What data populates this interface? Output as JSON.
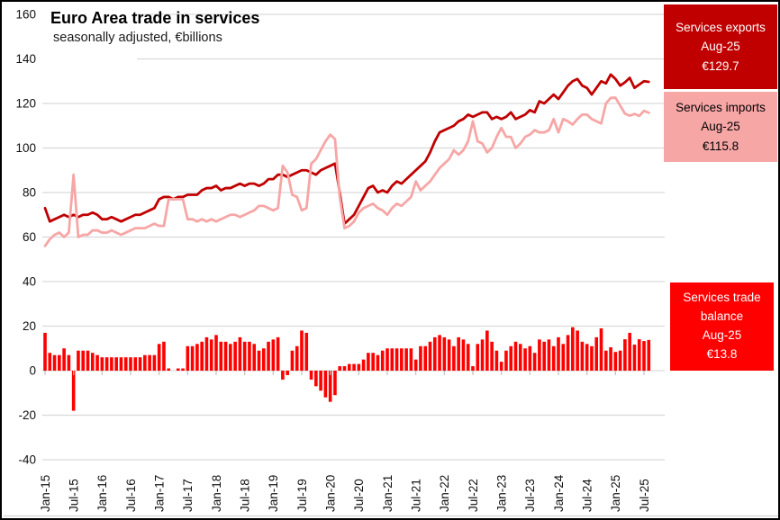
{
  "title": "Euro Area trade in services",
  "subtitle": "seasonally adjusted, €billions",
  "callouts": {
    "exports": {
      "lines": [
        "Services exports",
        "Aug-25",
        "€129.7"
      ],
      "bg": "#C00000",
      "text_color": "#FFFFFF"
    },
    "imports": {
      "lines": [
        "Services imports",
        "Aug-25",
        "€115.8"
      ],
      "bg": "#F7A6A6",
      "text_color": "#000000"
    },
    "balance": {
      "lines": [
        "Services trade balance",
        "Aug-25",
        "€13.8"
      ],
      "bg": "#FF0000",
      "text_color": "#FFFFFF"
    }
  },
  "chart_data": {
    "type": "combo",
    "title": "Euro Area trade in services",
    "subtitle": "seasonally adjusted, €billions",
    "frequency": "monthly",
    "period_start": "Jan-15",
    "period_end": "Aug-25",
    "x_ticks": [
      "Jan-15",
      "Jul-15",
      "Jan-16",
      "Jul-16",
      "Jan-17",
      "Jul-17",
      "Jan-18",
      "Jul-18",
      "Jan-19",
      "Jul-19",
      "Jan-20",
      "Jul-20",
      "Jan-21",
      "Jul-21",
      "Jan-22",
      "Jul-22",
      "Jan-23",
      "Jul-23",
      "Jan-24",
      "Jul-24",
      "Jan-25",
      "Jul-25"
    ],
    "y_ticks": [
      160,
      140,
      120,
      100,
      80,
      60,
      40,
      20,
      0,
      -20,
      -40
    ],
    "ylim": [
      -40,
      160
    ],
    "grid": true,
    "grid_color": "#D9D9D9",
    "tick_color": "#BFBFBF",
    "series": [
      {
        "name": "Services exports",
        "type": "line",
        "color": "#C00000",
        "values": [
          73,
          67,
          68,
          69,
          70,
          69,
          70,
          69,
          70,
          70,
          71,
          70,
          68,
          68,
          69,
          68,
          67,
          68,
          69,
          70,
          70,
          71,
          72,
          73,
          77,
          78,
          78,
          77,
          78,
          78,
          79,
          79,
          79,
          81,
          82,
          82,
          83,
          81,
          82,
          82,
          83,
          84,
          83,
          84,
          84,
          83,
          84,
          86,
          86,
          88,
          88,
          87,
          88,
          89,
          90,
          90,
          89,
          88,
          90,
          91,
          92,
          93,
          80,
          66,
          68,
          70,
          74,
          78,
          82,
          83,
          80,
          81,
          80,
          83,
          85,
          84,
          86,
          88,
          90,
          92,
          94,
          98,
          103,
          107,
          108,
          109,
          110,
          112,
          113,
          115,
          114,
          115,
          116,
          116,
          113,
          114,
          113,
          114,
          116,
          113,
          114,
          115,
          117,
          116,
          121,
          120,
          122,
          124,
          122,
          125,
          128,
          130,
          131,
          128,
          127,
          124,
          127,
          130,
          129,
          133,
          131,
          128,
          129.5,
          131.5,
          127,
          128.5,
          130,
          129.7
        ]
      },
      {
        "name": "Services imports",
        "type": "line",
        "color": "#F7A6A6",
        "values": [
          56,
          59,
          61,
          62,
          60,
          62,
          88,
          60,
          61,
          61,
          63,
          63,
          62,
          62,
          63,
          62,
          61,
          62,
          63,
          64,
          64,
          64,
          65,
          66,
          65,
          65,
          77,
          77,
          77,
          77,
          68,
          68,
          67,
          68,
          67,
          68,
          67,
          68,
          69,
          70,
          70,
          69,
          70,
          71,
          72,
          74,
          74,
          73,
          72,
          73,
          92,
          89,
          79,
          78,
          72,
          73,
          93,
          95,
          99,
          103,
          106,
          104,
          78,
          64,
          65,
          67,
          71,
          73,
          74,
          75,
          73,
          72,
          70,
          73,
          75,
          74,
          76,
          78,
          85,
          81,
          83,
          85,
          88,
          91,
          93,
          95,
          99,
          97,
          99,
          103,
          112,
          103,
          102,
          98,
          100,
          105,
          109,
          105,
          105,
          100,
          102,
          105,
          106,
          108,
          107,
          107,
          108,
          113,
          107,
          113,
          112,
          110.5,
          113,
          115,
          115,
          113,
          112,
          111,
          120,
          122.5,
          122.6,
          119,
          115.4,
          114.5,
          115.3,
          114.4,
          116.7,
          115.8
        ]
      },
      {
        "name": "Services trade balance",
        "type": "bar",
        "color": "#FF0000",
        "values": [
          17,
          8,
          7,
          7,
          10,
          7,
          -18,
          9,
          9,
          9,
          8,
          7,
          6,
          6,
          6,
          6,
          6,
          6,
          6,
          6,
          6,
          7,
          7,
          7,
          12,
          13,
          1,
          0,
          1,
          1,
          11,
          11,
          12,
          13,
          15,
          14,
          16,
          13,
          13,
          12,
          13,
          15,
          13,
          13,
          12,
          9,
          10,
          13,
          14,
          15,
          -4,
          -2,
          9,
          11,
          18,
          17,
          -4,
          -7,
          -9,
          -12,
          -14,
          -11,
          2,
          2,
          3,
          3,
          3,
          5,
          8,
          8,
          7,
          9,
          10,
          10,
          10,
          10,
          10,
          10,
          5,
          11,
          11,
          13,
          15,
          16,
          15,
          14,
          11,
          15,
          14,
          12,
          2,
          12,
          14,
          18,
          13,
          9,
          4,
          9,
          11,
          13,
          12,
          10,
          11,
          8,
          14,
          13,
          14,
          11,
          15,
          12,
          16,
          19.5,
          18,
          13,
          12,
          11,
          15,
          19,
          9,
          10.5,
          8.4,
          9,
          14.1,
          17,
          11.7,
          14.1,
          13.3,
          13.8
        ]
      }
    ]
  }
}
